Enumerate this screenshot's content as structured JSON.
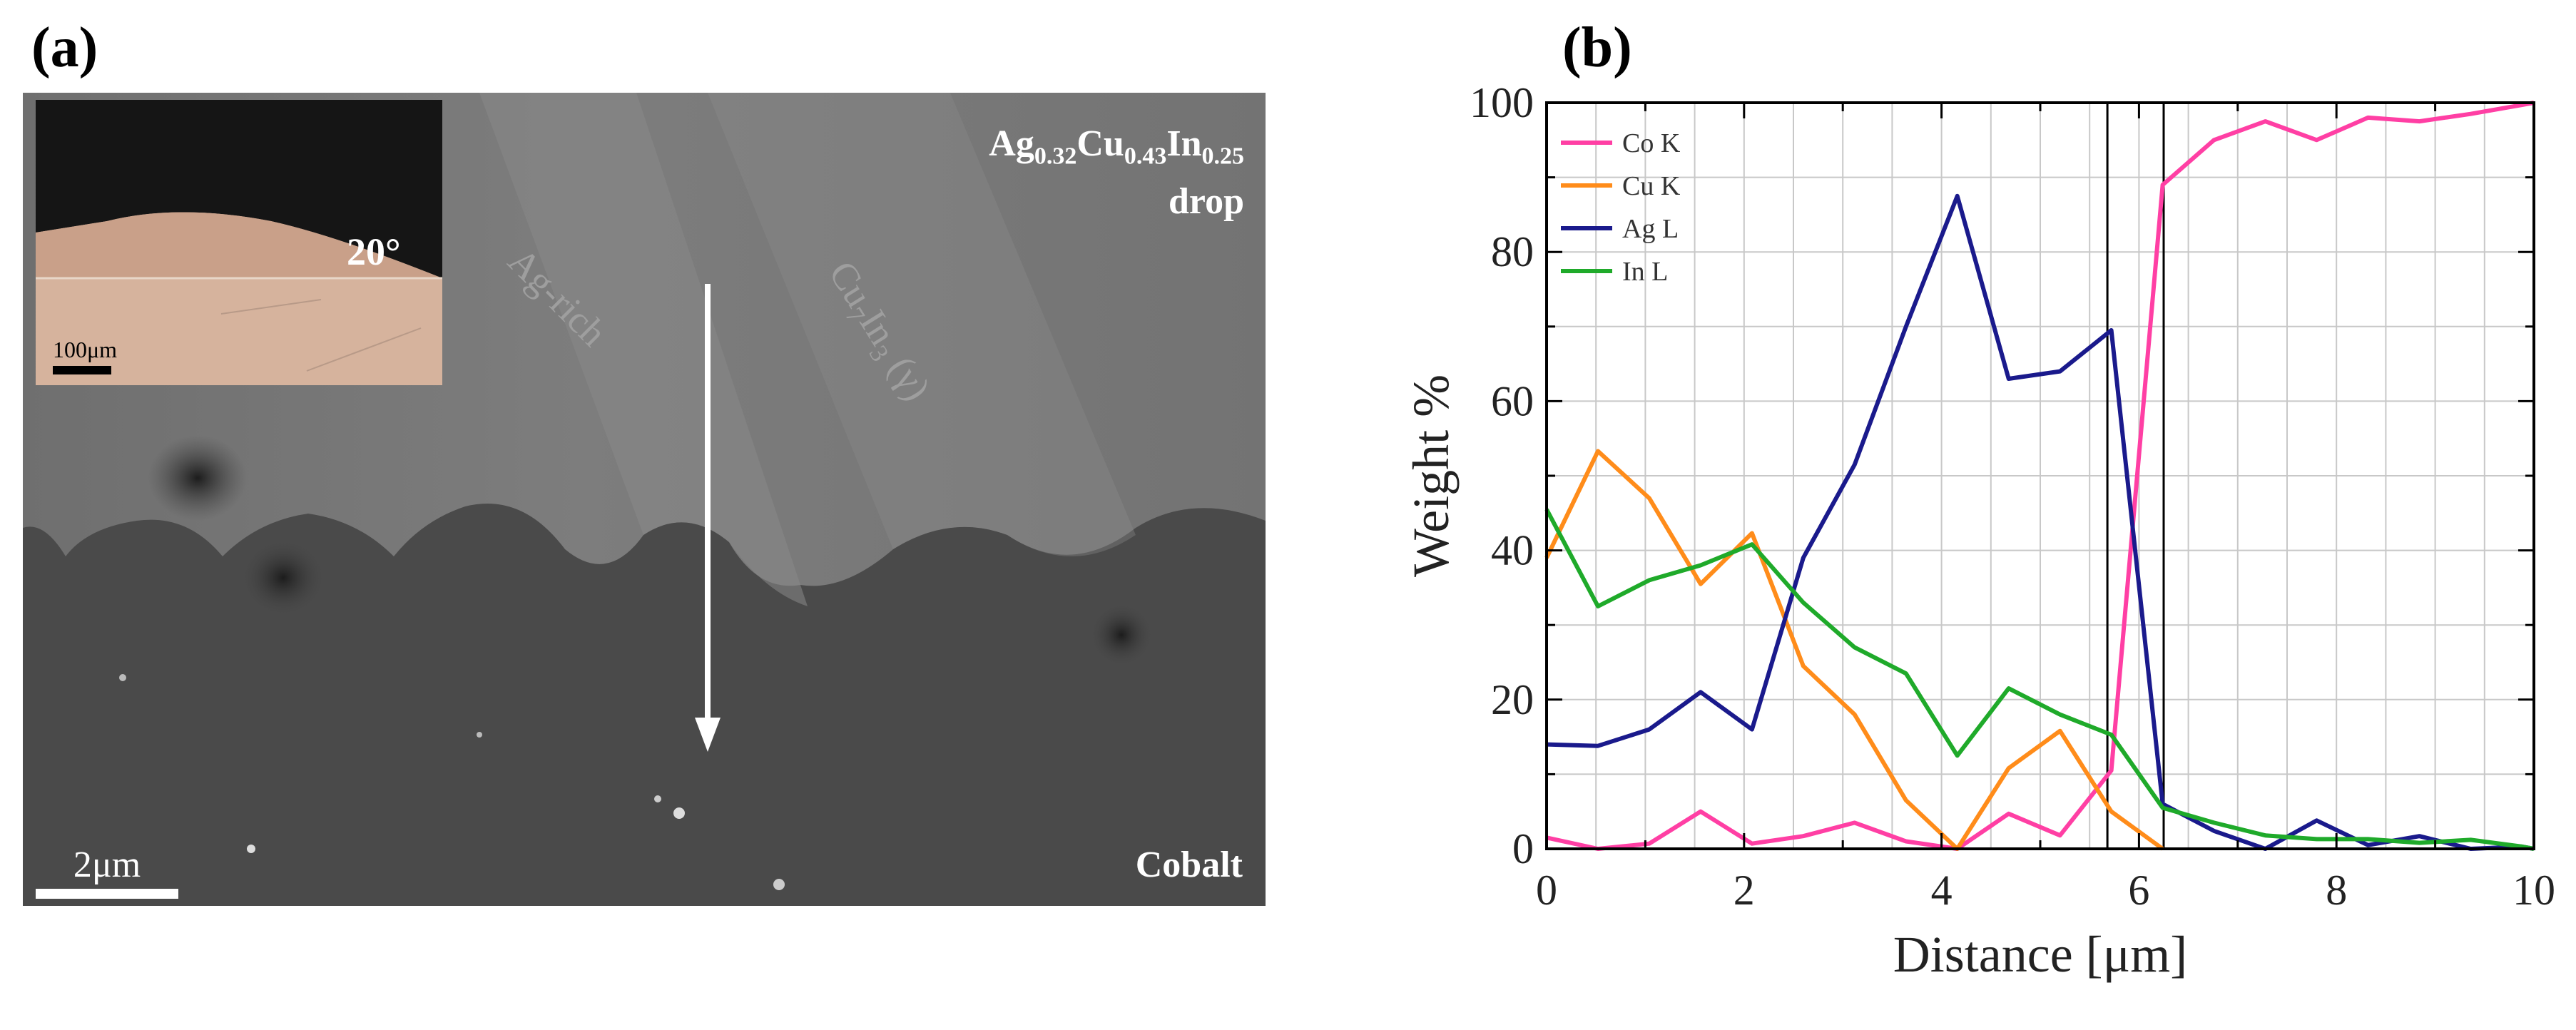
{
  "figure": {
    "panel_a_label": "(a)",
    "panel_b_label": "(b)"
  },
  "micrograph": {
    "drop_label_1": "Ag",
    "drop_sub_1": "0.32",
    "drop_label_2": "Cu",
    "drop_sub_2": "0.43",
    "drop_label_3": "In",
    "drop_sub_3": "0.25",
    "drop_label_4": "drop",
    "ag_rich_label": "Ag-rich",
    "cuin_label_1": "Cu",
    "cuin_sub_1": "7",
    "cuin_label_2": "In",
    "cuin_sub_2": "3",
    "cuin_label_3": " (γ)",
    "substrate_label": "Cobalt",
    "scale_bar_label": "2μm",
    "inset_angle_label": "20°",
    "inset_scale_label": "100μm"
  },
  "chart_data": {
    "type": "line",
    "title": "",
    "xlabel": "Distance [μm]",
    "ylabel": "Weight %",
    "xlim": [
      0,
      10
    ],
    "ylim": [
      0,
      100
    ],
    "xticks": [
      0,
      2,
      4,
      6,
      8,
      10
    ],
    "yticks": [
      0,
      20,
      40,
      60,
      80,
      100
    ],
    "grid": true,
    "legend_position": "top-left",
    "vertical_lines": [
      5.68,
      6.25
    ],
    "series": [
      {
        "name": "Co K",
        "color": "#ff3fa4",
        "x": [
          0,
          0.52,
          1.04,
          1.56,
          2.08,
          2.6,
          3.12,
          3.64,
          4.16,
          4.68,
          5.2,
          5.72,
          6.24,
          6.76,
          7.28,
          7.8,
          8.32,
          8.84,
          9.36,
          9.88,
          10
        ],
        "y": [
          1.5,
          0,
          0.7,
          5,
          0.7,
          1.7,
          3.5,
          1,
          0,
          4.7,
          1.8,
          10.5,
          89,
          95,
          97.5,
          95,
          98,
          97.5,
          98.5,
          99.7,
          100
        ]
      },
      {
        "name": "Cu K",
        "color": "#ff8c1a",
        "x": [
          0,
          0.52,
          1.04,
          1.56,
          2.08,
          2.6,
          3.12,
          3.64,
          4.16,
          4.68,
          5.2,
          5.72,
          6.24
        ],
        "y": [
          39,
          53.3,
          47,
          35.5,
          42.3,
          24.5,
          18,
          6.5,
          0,
          10.8,
          15.8,
          5,
          0
        ]
      },
      {
        "name": "Ag L",
        "color": "#1a1a8c",
        "x": [
          0,
          0.52,
          1.04,
          1.56,
          2.08,
          2.6,
          3.12,
          3.64,
          4.16,
          4.68,
          5.2,
          5.72,
          6.24,
          6.76,
          7.28,
          7.8,
          8.32,
          8.84,
          9.36,
          9.88,
          10
        ],
        "y": [
          14,
          13.8,
          16,
          21,
          16,
          39,
          51.5,
          70,
          87.5,
          63,
          64,
          69.5,
          6,
          2.4,
          0,
          3.8,
          0.5,
          1.7,
          0,
          0.3,
          0
        ]
      },
      {
        "name": "In L",
        "color": "#1faa2a",
        "x": [
          0,
          0.52,
          1.04,
          1.56,
          2.08,
          2.6,
          3.12,
          3.64,
          4.16,
          4.68,
          5.2,
          5.72,
          6.24,
          6.76,
          7.28,
          7.8,
          8.32,
          8.84,
          9.36,
          9.88,
          10
        ],
        "y": [
          45.5,
          32.5,
          36,
          38,
          40.8,
          33,
          27,
          23.5,
          12.5,
          21.5,
          18,
          15.3,
          5.5,
          3.5,
          1.8,
          1.3,
          1.3,
          0.8,
          1.2,
          0.3,
          0
        ]
      }
    ]
  }
}
